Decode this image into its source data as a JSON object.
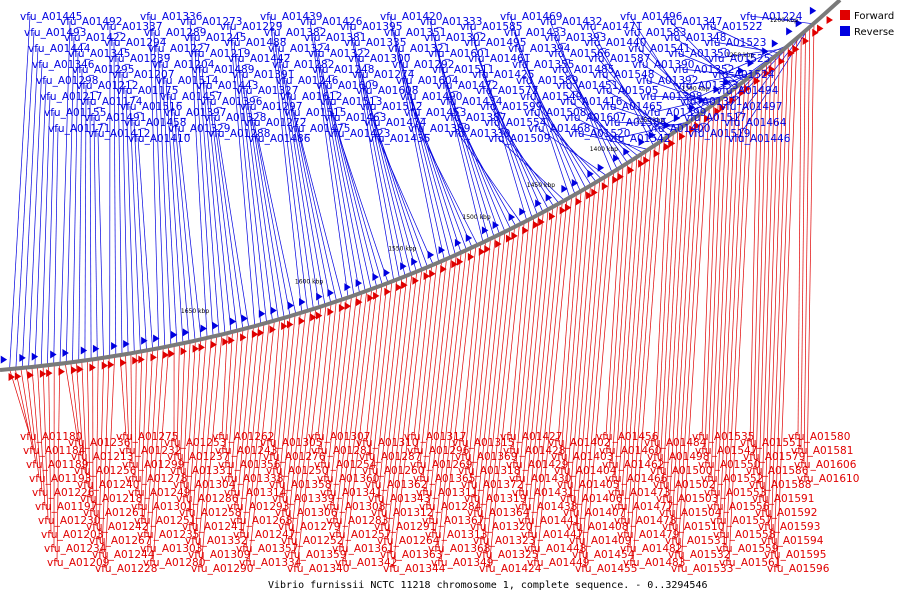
{
  "caption": "Vibrio furnissii NCTC 11218 chromosome 1, complete sequence. - 0..3294546",
  "legend": [
    {
      "name": "Forward",
      "color": "#e00000"
    },
    {
      "name": "Reverse",
      "color": "#0000e0"
    }
  ],
  "colors": {
    "forward": "#e00000",
    "reverse": "#0000e0",
    "backbone": "#7a7a7a"
  },
  "kbp_ticks": [
    "1200 kbp",
    "1250 kbp",
    "1300 kbp",
    "1350 kbp",
    "1400 kbp",
    "1450 kbp",
    "1500 kbp",
    "1550 kbp",
    "1600 kbp",
    "1650 kbp"
  ],
  "reverse_labels": [
    "vfu_A01445",
    "vfu_A01493",
    "vfu_A01444",
    "vfu_A01346",
    "vfu_A01298",
    "vfu_A01217",
    "vfu_A01155",
    "vfu_A01171",
    "vfu_A01492",
    "vfu_A01422",
    "vfu_A01345",
    "vfu_A01295",
    "vfu_A01212",
    "vfu_A01174",
    "vfu_A01491",
    "vfu_A01412",
    "vfu_A01337",
    "vfu_A01294",
    "vfu_A01239",
    "vfu_A01207",
    "vfu_A01175",
    "vfu_A01516",
    "vfu_A01458",
    "vfu_A01410",
    "vfu_A01336",
    "vfu_A01289",
    "vfu_A01227",
    "vfu_A01204",
    "vfu_A01514",
    "vfu_A01457",
    "vfu_A01397",
    "vfu_A01329",
    "vfu_A01273",
    "vfu_A01245",
    "vfu_A01219",
    "vfu_A01489",
    "vfu_A01443",
    "vfu_A01396",
    "vfu_A01328",
    "vfu_A01288",
    "vfu_A01229",
    "vfu_A01488",
    "vfu_A01442",
    "vfu_A01391",
    "vfu_A01327",
    "vfu_A01297",
    "vfu_A01272",
    "vfu_A01486",
    "vfu_A01439",
    "vfu_A01382",
    "vfu_A01324",
    "vfu_A01282",
    "vfu_A01246",
    "vfu_A01612",
    "vfu_A01515",
    "vfu_A01475",
    "vfu_A01426",
    "vfu_A01381",
    "vfu_A01322",
    "vfu_A01248",
    "vfu_A01609",
    "vfu_A01513",
    "vfu_A01463",
    "vfu_A01423",
    "vfu_A01395",
    "vfu_A01335",
    "vfu_A01300",
    "vfu_A01274",
    "vfu_A01608",
    "vfu_A01512",
    "vfu_A01474",
    "vfu_A01435",
    "vfu_A01420",
    "vfu_A01351",
    "vfu_A01321",
    "vfu_A01292",
    "vfu_A01604",
    "vfu_A01490",
    "vfu_A01453",
    "vfu_A01389",
    "vfu_A01333",
    "vfu_A01302",
    "vfu_A01601",
    "vfu_A01511",
    "vfu_A01472",
    "vfu_A01434",
    "vfu_A01387",
    "vfu_A01330",
    "vfu_A01585",
    "vfu_A01495",
    "vfu_A01461",
    "vfu_A01425",
    "vfu_A01572",
    "vfu_A01599",
    "vfu_A01554",
    "vfu_A01509",
    "vfu_A01469",
    "vfu_A01433",
    "vfu_A01394",
    "vfu_A01355",
    "vfu_A01589",
    "vfu_A01549",
    "vfu_A01508",
    "vfu_A01468",
    "vfu_A01432",
    "vfu_A01393",
    "vfu_A01566",
    "vfu_A01485",
    "vfu_A01451",
    "vfu_A01416",
    "vfu_A01607",
    "vfu_A01520",
    "vfu_A01471",
    "vfu_A01440",
    "vfu_A01587",
    "vfu_A01548",
    "vfu_A01505",
    "vfu_A01465",
    "vfu_A01584",
    "vfu_A01542",
    "vfu_A01496",
    "vfu_A01583",
    "vfu_A01541",
    "vfu_A01390",
    "vfu_A01392",
    "vfu_A01398",
    "vfu_A01399",
    "vfu_A01400",
    "vfu_A01347",
    "vfu_A01348",
    "vfu_A01350",
    "vfu_A01352",
    "vfu_A01353",
    "vfu_A01371",
    "vfu_A01517",
    "vfu_A01519",
    "vfu_A01522",
    "vfu_A01523",
    "vfu_A01525",
    "vfu_A01524",
    "vfu_A01494",
    "vfu_A01497",
    "vfu_A01464",
    "vfu_A01446",
    "vfu_A01224"
  ],
  "forward_labels": [
    "vfu_A01180",
    "vfu_A01184",
    "vfu_A01189",
    "vfu_A01193",
    "vfu_A01226",
    "vfu_A01197",
    "vfu_A01230",
    "vfu_A01203",
    "vfu_A01234",
    "vfu_A01209",
    "vfu_A01236",
    "vfu_A01213",
    "vfu_A01256",
    "vfu_A01240",
    "vfu_A01218",
    "vfu_A01261",
    "vfu_A01242",
    "vfu_A01267",
    "vfu_A01244",
    "vfu_A01228",
    "vfu_A01275",
    "vfu_A01232",
    "vfu_A01299",
    "vfu_A01278",
    "vfu_A01249",
    "vfu_A01301",
    "vfu_A01251",
    "vfu_A01235",
    "vfu_A01303",
    "vfu_A01280",
    "vfu_A01253",
    "vfu_A01237",
    "vfu_A01331",
    "vfu_A01304",
    "vfu_A01286",
    "vfu_A01258",
    "vfu_A01241",
    "vfu_A01332",
    "vfu_A01309",
    "vfu_A01290",
    "vfu_A01262",
    "vfu_A01243",
    "vfu_A01356",
    "vfu_A01338",
    "vfu_A01314",
    "vfu_A01293",
    "vfu_A01268",
    "vfu_A01247",
    "vfu_A01357",
    "vfu_A01334",
    "vfu_A01305",
    "vfu_A01276",
    "vfu_A01250",
    "vfu_A01358",
    "vfu_A01339",
    "vfu_A01306",
    "vfu_A01279",
    "vfu_A01252",
    "vfu_A01359",
    "vfu_A01340",
    "vfu_A01307",
    "vfu_A01281",
    "vfu_A01254",
    "vfu_A01360",
    "vfu_A01341",
    "vfu_A01308",
    "vfu_A01283",
    "vfu_A01257",
    "vfu_A01361",
    "vfu_A01342",
    "vfu_A01310",
    "vfu_A01287",
    "vfu_A01260",
    "vfu_A01362",
    "vfu_A01343",
    "vfu_A01312",
    "vfu_A01291",
    "vfu_A01264",
    "vfu_A01363",
    "vfu_A01344",
    "vfu_A01317",
    "vfu_A01296",
    "vfu_A01269",
    "vfu_A01365",
    "vfu_A01311",
    "vfu_A01284",
    "vfu_A01367",
    "vfu_A01313",
    "vfu_A01368",
    "vfu_A01349",
    "vfu_A01315",
    "vfu_A01369",
    "vfu_A01318",
    "vfu_A01372",
    "vfu_A01319",
    "vfu_A01364",
    "vfu_A01320",
    "vfu_A01323",
    "vfu_A01325",
    "vfu_A01424",
    "vfu_A01427",
    "vfu_A01428",
    "vfu_A01429",
    "vfu_A01430",
    "vfu_A01431",
    "vfu_A01438",
    "vfu_A01441",
    "vfu_A01447",
    "vfu_A01448",
    "vfu_A01449",
    "vfu_A01402",
    "vfu_A01403",
    "vfu_A01404",
    "vfu_A01405",
    "vfu_A01406",
    "vfu_A01407",
    "vfu_A01408",
    "vfu_A01409",
    "vfu_A01454",
    "vfu_A01455",
    "vfu_A01456",
    "vfu_A01460",
    "vfu_A01462",
    "vfu_A01466",
    "vfu_A01473",
    "vfu_A01477",
    "vfu_A01478",
    "vfu_A01479",
    "vfu_A01482",
    "vfu_A01483",
    "vfu_A01484",
    "vfu_A01498",
    "vfu_A01500",
    "vfu_A01502",
    "vfu_A01503",
    "vfu_A01504",
    "vfu_A01510",
    "vfu_A01531",
    "vfu_A01532",
    "vfu_A01533",
    "vfu_A01535",
    "vfu_A01547",
    "vfu_A01550",
    "vfu_A01552",
    "vfu_A01553",
    "vfu_A01556",
    "vfu_A01557",
    "vfu_A01558",
    "vfu_A01559",
    "vfu_A01561",
    "vfu_A01551",
    "vfu_A01579",
    "vfu_A01586",
    "vfu_A01588",
    "vfu_A01591",
    "vfu_A01592",
    "vfu_A01593",
    "vfu_A01594",
    "vfu_A01595",
    "vfu_A01596",
    "vfu_A01580",
    "vfu_A01581",
    "vfu_A01606",
    "vfu_A01610"
  ]
}
